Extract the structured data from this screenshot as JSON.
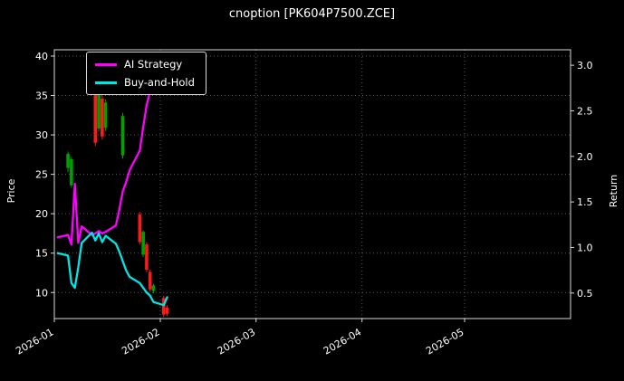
{
  "chart_data": {
    "type": "candlestick+line",
    "title": "cnoption [PK604P7500.ZCE]",
    "ylabel_left": "Price",
    "ylabel_right": "Return",
    "legend_position": "upper left",
    "grid": true,
    "x_range": [
      "2026-01-01",
      "2026-06-01"
    ],
    "x_ticks": [
      {
        "date": "2026-01-01",
        "label": "2026-01"
      },
      {
        "date": "2026-02-01",
        "label": "2026-02"
      },
      {
        "date": "2026-03-01",
        "label": "2026-03"
      },
      {
        "date": "2026-04-01",
        "label": "2026-04"
      },
      {
        "date": "2026-05-01",
        "label": "2026-05"
      }
    ],
    "price_axis": {
      "label": "Price",
      "ticks": [
        10,
        15,
        20,
        25,
        30,
        35,
        40
      ],
      "range": [
        6.7,
        40.8
      ]
    },
    "return_axis": {
      "label": "Return",
      "ticks": [
        0.5,
        1.0,
        1.5,
        2.0,
        2.5,
        3.0
      ],
      "range": [
        0.22,
        3.17
      ]
    },
    "colors": {
      "background": "#000000",
      "foreground": "#ffffff",
      "grid": "#5a5a5a",
      "spine": "#d9d9d9",
      "candle_up": "#00a000",
      "candle_down": "#ff1a1a",
      "ai_strategy": "#ff00ff",
      "buy_and_hold": "#00e5e5"
    },
    "candles": [
      {
        "date": "2026-01-05",
        "o": 25.8,
        "h": 27.9,
        "l": 25.3,
        "c": 27.6
      },
      {
        "date": "2026-01-06",
        "o": 23.6,
        "h": 27.2,
        "l": 23.3,
        "c": 26.9
      },
      {
        "date": "2026-01-13",
        "o": 35.2,
        "h": 35.6,
        "l": 28.6,
        "c": 29.0
      },
      {
        "date": "2026-01-14",
        "o": 30.8,
        "h": 36.6,
        "l": 30.4,
        "c": 36.3
      },
      {
        "date": "2026-01-15",
        "o": 34.6,
        "h": 35.0,
        "l": 29.4,
        "c": 29.8
      },
      {
        "date": "2026-01-16",
        "o": 30.9,
        "h": 34.5,
        "l": 30.5,
        "c": 34.1
      },
      {
        "date": "2026-01-21",
        "o": 27.4,
        "h": 32.8,
        "l": 27.0,
        "c": 32.4
      },
      {
        "date": "2026-01-26",
        "o": 19.9,
        "h": 20.2,
        "l": 16.1,
        "c": 16.4
      },
      {
        "date": "2026-01-27",
        "o": 14.8,
        "h": 17.9,
        "l": 14.5,
        "c": 17.7
      },
      {
        "date": "2026-01-28",
        "o": 16.1,
        "h": 16.4,
        "l": 12.6,
        "c": 12.9
      },
      {
        "date": "2026-01-29",
        "o": 12.6,
        "h": 12.9,
        "l": 10.1,
        "c": 10.4
      },
      {
        "date": "2026-01-30",
        "o": 10.2,
        "h": 11.1,
        "l": 9.9,
        "c": 10.9
      },
      {
        "date": "2026-02-02",
        "o": 9.3,
        "h": 9.6,
        "l": 6.9,
        "c": 7.2
      },
      {
        "date": "2026-02-03",
        "o": 8.1,
        "h": 8.4,
        "l": 7.0,
        "c": 7.3
      }
    ],
    "series": [
      {
        "name": "AI Strategy",
        "color": "#ff00ff",
        "axis": "price",
        "dates": [
          "2026-01-02",
          "2026-01-05",
          "2026-01-06",
          "2026-01-07",
          "2026-01-08",
          "2026-01-09",
          "2026-01-12",
          "2026-01-13",
          "2026-01-14",
          "2026-01-15",
          "2026-01-16",
          "2026-01-19",
          "2026-01-20",
          "2026-01-21",
          "2026-01-22",
          "2026-01-23",
          "2026-01-26",
          "2026-01-27",
          "2026-01-28",
          "2026-01-29",
          "2026-01-30"
        ],
        "values": [
          17.0,
          17.3,
          16.1,
          23.8,
          16.3,
          18.4,
          17.3,
          17.5,
          17.8,
          17.5,
          17.7,
          18.5,
          20.5,
          22.8,
          24.0,
          25.5,
          28.0,
          31.0,
          33.8,
          35.5,
          36.3
        ]
      },
      {
        "name": "Buy-and-Hold",
        "color": "#00e5e5",
        "axis": "price",
        "dates": [
          "2026-01-02",
          "2026-01-05",
          "2026-01-06",
          "2026-01-07",
          "2026-01-08",
          "2026-01-09",
          "2026-01-12",
          "2026-01-13",
          "2026-01-14",
          "2026-01-15",
          "2026-01-16",
          "2026-01-19",
          "2026-01-20",
          "2026-01-21",
          "2026-01-22",
          "2026-01-23",
          "2026-01-26",
          "2026-01-27",
          "2026-01-28",
          "2026-01-29",
          "2026-01-30",
          "2026-02-02",
          "2026-02-03"
        ],
        "values": [
          15.0,
          14.7,
          11.2,
          10.6,
          13.2,
          16.3,
          17.6,
          16.6,
          17.5,
          16.4,
          17.2,
          16.2,
          15.2,
          14.0,
          12.8,
          12.0,
          11.2,
          10.6,
          10.0,
          9.6,
          8.8,
          8.4,
          9.4
        ]
      }
    ]
  }
}
